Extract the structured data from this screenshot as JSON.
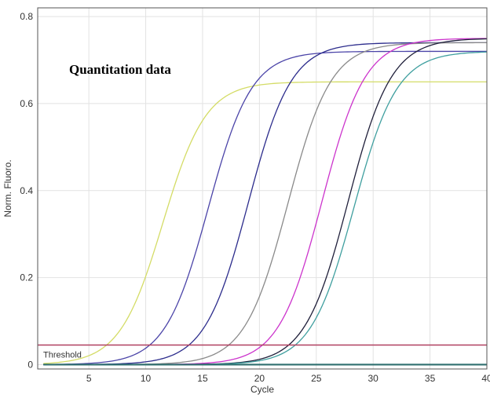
{
  "chart_data": {
    "type": "line",
    "title": "Quantitation data",
    "xlabel": "Cycle",
    "ylabel": "Norm. Fluoro.",
    "xlim": [
      0.5,
      40
    ],
    "ylim": [
      -0.01,
      0.82
    ],
    "x_ticks": [
      5,
      10,
      15,
      20,
      25,
      30,
      35,
      40
    ],
    "y_ticks": [
      0,
      0.2,
      0.4,
      0.6,
      0.8
    ],
    "y_tick_labels": [
      "0",
      "0.2",
      "0.4",
      "0.6",
      "0.8"
    ],
    "grid": true,
    "threshold": {
      "label": "Threshold",
      "value": 0.045,
      "color": "#b04060"
    },
    "series": [
      {
        "color": "#d4dc66",
        "midpoint": 11.5,
        "slope": 1.9,
        "plateau": 0.65
      },
      {
        "color": "#4b44a8",
        "midpoint": 15.5,
        "slope": 1.9,
        "plateau": 0.72
      },
      {
        "color": "#2c2c8c",
        "midpoint": 19.0,
        "slope": 1.9,
        "plateau": 0.74
      },
      {
        "color": "#8a8a8a",
        "midpoint": 22.5,
        "slope": 1.9,
        "plateau": 0.74
      },
      {
        "color": "#cc33cc",
        "midpoint": 25.5,
        "slope": 1.9,
        "plateau": 0.75
      },
      {
        "color": "#1f1f3a",
        "midpoint": 27.8,
        "slope": 1.9,
        "plateau": 0.75
      },
      {
        "color": "#3f9f9f",
        "midpoint": 28.3,
        "slope": 1.9,
        "plateau": 0.72
      }
    ]
  }
}
